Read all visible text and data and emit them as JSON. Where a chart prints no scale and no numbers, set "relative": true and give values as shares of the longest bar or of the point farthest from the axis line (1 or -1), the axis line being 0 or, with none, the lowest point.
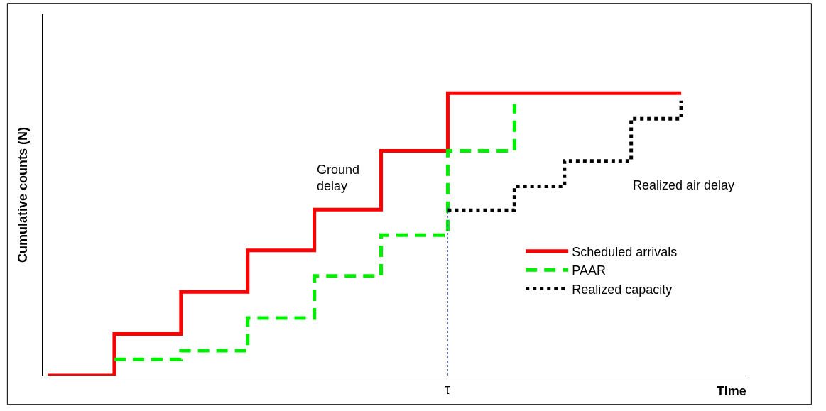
{
  "chart_data": {
    "type": "step",
    "relative": true,
    "xlabel": "Time",
    "ylabel": "Cumulative counts (N)",
    "categories": [
      null,
      null,
      null,
      null,
      null,
      null,
      null,
      null,
      null,
      null,
      null,
      null,
      null,
      null,
      null,
      null,
      null,
      null,
      null,
      null,
      null,
      null,
      null,
      null,
      null,
      null,
      null,
      null,
      null,
      null,
      null,
      null,
      null,
      null,
      null,
      null,
      null,
      null,
      null
    ],
    "series": [
      {
        "name": "Scheduled arrivals",
        "color": "#ff0000",
        "line_style": "solid",
        "values": [
          0,
          null,
          null,
          null,
          0.147,
          null,
          null,
          null,
          0.296,
          null,
          null,
          null,
          0.443,
          null,
          null,
          null,
          0.588,
          null,
          null,
          null,
          0.796,
          null,
          null,
          null,
          1,
          null,
          null,
          null,
          null,
          null,
          null,
          null,
          null,
          null,
          null,
          null,
          null,
          null,
          1
        ]
      },
      {
        "name": "PAAR",
        "color": "#00ee00",
        "line_style": "dashed",
        "values": [
          null,
          null,
          null,
          null,
          0.057,
          null,
          null,
          null,
          0.088,
          null,
          null,
          null,
          0.204,
          null,
          null,
          null,
          0.353,
          null,
          null,
          null,
          0.497,
          null,
          null,
          null,
          0.796,
          null,
          null,
          null,
          0.961,
          null,
          null,
          null,
          null,
          null,
          null,
          null,
          null,
          null,
          null
        ]
      },
      {
        "name": "Realized capacity",
        "color": "#000000",
        "line_style": "dotted",
        "values": [
          null,
          null,
          null,
          null,
          null,
          null,
          null,
          null,
          null,
          null,
          null,
          null,
          null,
          null,
          null,
          null,
          null,
          null,
          null,
          null,
          null,
          null,
          null,
          null,
          0.585,
          null,
          null,
          null,
          0.67,
          null,
          null,
          0.76,
          null,
          null,
          null,
          0.91,
          null,
          null,
          0.974
        ]
      }
    ],
    "annotations": [
      "Ground delay",
      "Realized air delay",
      "τ"
    ],
    "legend": "bottom right"
  }
}
